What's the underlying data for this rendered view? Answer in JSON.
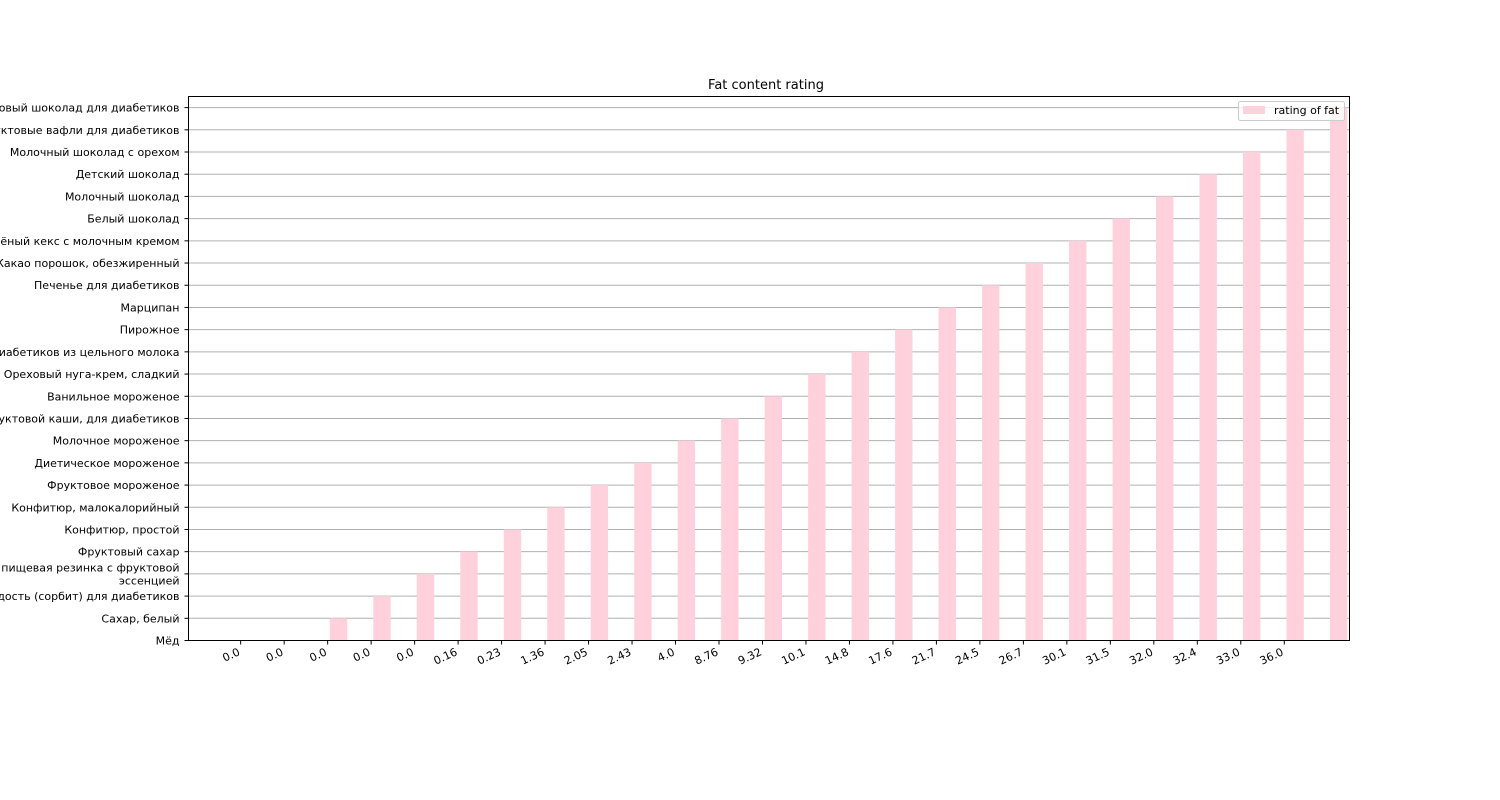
{
  "chart_data": {
    "type": "bar",
    "title": "Fat content rating",
    "xlabel": "",
    "ylabel": "",
    "x_tick_labels": [
      "0.0",
      "0.0",
      "0.0",
      "0.0",
      "0.0",
      "0.16",
      "0.23",
      "1.36",
      "2.05",
      "2.43",
      "4.0",
      "8.76",
      "9.32",
      "10.1",
      "14.8",
      "17.6",
      "21.7",
      "24.5",
      "26.7",
      "30.1",
      "31.5",
      "32.0",
      "32.4",
      "33.0",
      "36.0"
    ],
    "y_tick_labels": [
      "Мёд",
      "Сахар, белый",
      "Сладость (сорбит) для диабетиков",
      "Жевательная пищевая резинка с фруктовой\nэссенцией",
      "Фруктовый сахар",
      "Конфитюр, простой",
      "Конфитюр, малокалорийный",
      "Фруктовое мороженое",
      "Диетическое мороженое",
      "Молочное мороженое",
      "Смесь для фруктовой каши, для диабетиков",
      "Ванильное мороженое",
      "Ореховый нуга-крем, сладкий",
      "Шоколад для диабетиков из цельного молока",
      "Пирожное",
      "Марципан",
      "Печенье для диабетиков",
      "Какао порошок, обезжиренный",
      "Сдобный печёный кекс с молочным кремом",
      "Белый шоколад",
      "Молочный шоколад",
      "Детский шоколад",
      "Молочный шоколад с орехом",
      "Фруктовые вафли для диабетиков",
      "Горький ореховый шоколад для диабетиков"
    ],
    "series": [
      {
        "name": "rating of fat",
        "color": "#ffd1dc",
        "values": [
          0,
          1,
          2,
          3,
          4,
          5,
          6,
          7,
          8,
          9,
          10,
          11,
          12,
          13,
          14,
          15,
          16,
          17,
          18,
          19,
          20,
          21,
          22,
          23,
          24
        ]
      }
    ],
    "ylim": [
      0,
      24.5
    ],
    "grid": "horizontal",
    "legend_position": "top-right"
  }
}
